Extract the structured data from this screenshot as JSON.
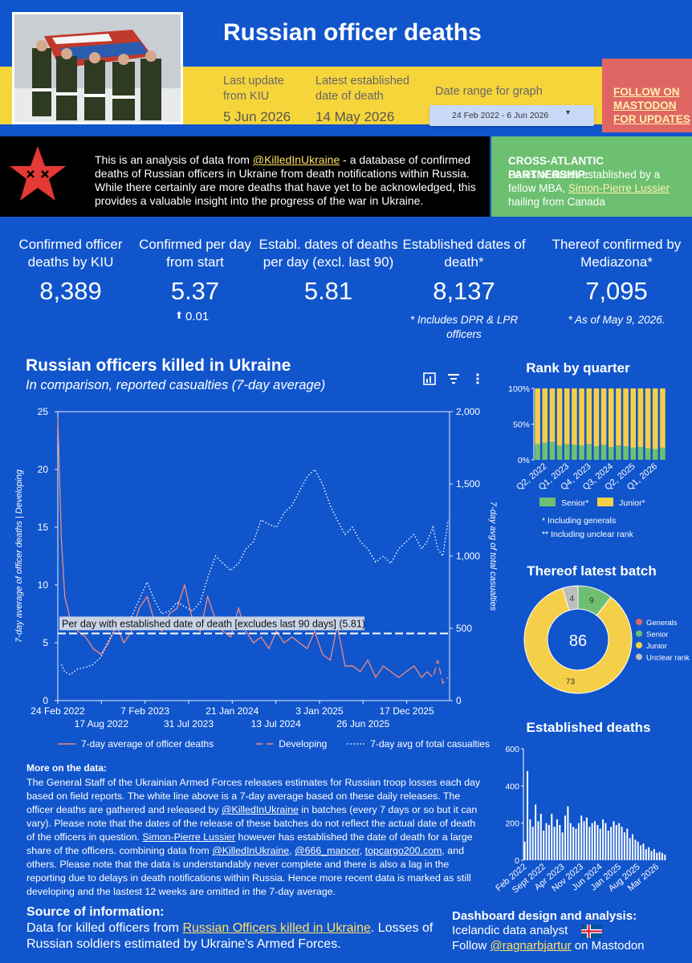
{
  "header": {
    "title": "Russian officer deaths",
    "last_update_label": "Last update from KIU",
    "last_update": "5 Jun 2026",
    "latest_death_label": "Latest established date of death",
    "latest_death": "14 May 2026",
    "date_range_label": "Date range for graph",
    "date_range": "24 Feb 2022 - 6 Jun 2026",
    "follow_button": "FOLLOW ON MASTODON FOR UPDATES"
  },
  "intro": {
    "segments": [
      "This is an analysis of data from ",
      {
        "link": "@KilledInUkraine"
      },
      " - a database of confirmed deaths of Russian officers in Ukraine from death notifications within Russia. While there certainly are more deaths that have yet to be acknowledged, this provides a valuable insight into the progress of the war in Ukraine."
    ]
  },
  "partnership": {
    "title": "CROSS-ATLANTIC PARTNERSHIP:",
    "segments": [
      "Dates of death established by a fellow MBA, ",
      {
        "link": "Simon-Pierre Lussier"
      },
      " hailing from Canada"
    ]
  },
  "kpis": [
    {
      "label": "Confirmed officer deaths by KIU",
      "value": "8,389"
    },
    {
      "label": "Confirmed per day from start",
      "value": "5.37",
      "change": "0.01"
    },
    {
      "label": "Establ. dates of deaths per day (excl. last 90)",
      "value": "5.81"
    },
    {
      "label": "Established dates of death*",
      "value": "8,137",
      "note": "* Includes DPR & LPR officers"
    },
    {
      "label": "Thereof confirmed by Mediazona*",
      "value": "7,095",
      "note": "* As of May 9, 2026."
    }
  ],
  "chart_data": [
    {
      "type": "line",
      "title": "Russian officers killed in Ukraine",
      "subtitle": "In comparison, reported casualties (7-day average)",
      "x": [
        "2022-02-24",
        "2022-03-10",
        "2022-03-24",
        "2022-04-15",
        "2022-05-15",
        "2022-06-15",
        "2022-07-15",
        "2022-08-15",
        "2022-09-15",
        "2022-10-15",
        "2022-11-15",
        "2022-12-15",
        "2023-01-15",
        "2023-02-15",
        "2023-03-15",
        "2023-04-15",
        "2023-05-15",
        "2023-06-15",
        "2023-07-15",
        "2023-08-15",
        "2023-09-15",
        "2023-10-15",
        "2023-11-15",
        "2023-12-15",
        "2024-01-15",
        "2024-02-15",
        "2024-03-15",
        "2024-04-15",
        "2024-05-15",
        "2024-06-15",
        "2024-07-15",
        "2024-08-15",
        "2024-09-15",
        "2024-10-15",
        "2024-11-15",
        "2024-12-15",
        "2025-01-15",
        "2025-02-15",
        "2025-03-15",
        "2025-04-15",
        "2025-05-15",
        "2025-06-15",
        "2025-07-15",
        "2025-08-15",
        "2025-09-15",
        "2025-10-15",
        "2025-11-15",
        "2025-12-15",
        "2026-01-15",
        "2026-02-15",
        "2026-03-08",
        "2026-04-01",
        "2026-04-20",
        "2026-05-10",
        "2026-06-01"
      ],
      "series": [
        {
          "name": "7-day average of officer deaths",
          "color": "#ef8a7e",
          "style": "solid",
          "axis": "y",
          "values": [
            24.5,
            14,
            9,
            7,
            6,
            5.5,
            4.5,
            4,
            5,
            6.5,
            5,
            6,
            8,
            9,
            7,
            6,
            7.5,
            8,
            10,
            7,
            6,
            9,
            7,
            6,
            5.5,
            8,
            6,
            5,
            5.5,
            4.5,
            6,
            5,
            5.5,
            5,
            4.5,
            6,
            4,
            3.5,
            6.5,
            3,
            3,
            2.5,
            3.5,
            2,
            3,
            2.5,
            2,
            2.5,
            3,
            2,
            2.5,
            null,
            null,
            null,
            null
          ]
        },
        {
          "name": "Developing",
          "color": "#ef8a7e",
          "style": "dashed",
          "axis": "y",
          "values": [
            null,
            null,
            null,
            null,
            null,
            null,
            null,
            null,
            null,
            null,
            null,
            null,
            null,
            null,
            null,
            null,
            null,
            null,
            null,
            null,
            null,
            null,
            null,
            null,
            null,
            null,
            null,
            null,
            null,
            null,
            null,
            null,
            null,
            null,
            null,
            null,
            null,
            null,
            null,
            null,
            null,
            null,
            null,
            null,
            null,
            null,
            null,
            null,
            null,
            null,
            2.5,
            2,
            3.5,
            1.5,
            2
          ]
        },
        {
          "name": "7-day avg of total casualties",
          "color": "#ffffff",
          "style": "dotted",
          "axis": "y2",
          "values": [
            null,
            250,
            200,
            180,
            220,
            230,
            250,
            300,
            420,
            500,
            560,
            580,
            700,
            820,
            700,
            600,
            620,
            680,
            650,
            620,
            680,
            850,
            1000,
            950,
            900,
            950,
            1050,
            1100,
            1250,
            1220,
            1200,
            1300,
            1350,
            1450,
            1550,
            1600,
            1500,
            1350,
            1250,
            1150,
            1200,
            1100,
            1050,
            960,
            1000,
            950,
            1050,
            1100,
            1150,
            1050,
            1100,
            1200,
            1050,
            1000,
            1250
          ]
        }
      ],
      "xlim": [
        "2022-02-24",
        "2026-06-06"
      ],
      "xticks": [
        {
          "value": "2022-02-24",
          "label": "24 Feb 2022"
        },
        {
          "value": "2022-08-17",
          "label": "17 Aug 2022"
        },
        {
          "value": "2023-02-07",
          "label": "7 Feb 2023"
        },
        {
          "value": "2023-07-31",
          "label": "31 Jul 2023"
        },
        {
          "value": "2024-01-21",
          "label": "21 Jan 2024"
        },
        {
          "value": "2024-07-13",
          "label": "13 Jul 2024"
        },
        {
          "value": "2025-01-03",
          "label": "3 Jan 2025"
        },
        {
          "value": "2025-06-26",
          "label": "26 Jun 2025"
        },
        {
          "value": "2025-12-17",
          "label": "17 Dec 2025"
        }
      ],
      "ylim": [
        0,
        25
      ],
      "yticks": [
        0,
        5,
        10,
        15,
        20,
        25
      ],
      "y2lim": [
        0,
        2000
      ],
      "y2ticks": [
        0,
        500,
        {
          "value": 1000,
          "label": "1,000"
        },
        {
          "value": 1500,
          "label": "1,500"
        },
        {
          "value": 2000,
          "label": "2,000"
        }
      ],
      "ylabel": "7-day average of officer deaths | Developing",
      "y2label": "7-day avg of total casualties",
      "reference": {
        "value": 5.81,
        "label": "Per day with established date of death [excludes last 90 days] (5.81)"
      },
      "grid": false
    },
    {
      "type": "bar",
      "stacked": true,
      "title": "Rank by quarter",
      "categories": [
        null,
        "Q2, 2022",
        null,
        null,
        "Q1, 2023",
        null,
        null,
        "Q4, 2023",
        null,
        null,
        "Q3, 2024",
        null,
        null,
        "Q2, 2025",
        null,
        null,
        "Q1, 2026",
        null
      ],
      "series": [
        {
          "name": "Senior*",
          "color": "#6fbf73",
          "values": [
            22,
            24,
            25,
            20,
            22,
            21,
            20,
            22,
            19,
            21,
            18,
            20,
            19,
            17,
            18,
            16,
            15,
            17
          ]
        },
        {
          "name": "Junior*",
          "color": "#f6cf4a",
          "values": [
            78,
            76,
            75,
            80,
            78,
            79,
            80,
            78,
            81,
            79,
            82,
            80,
            81,
            83,
            82,
            84,
            85,
            83
          ]
        }
      ],
      "ylim": [
        0,
        100
      ],
      "yticks": [
        {
          "value": 0,
          "label": "0%"
        },
        {
          "value": 50,
          "label": "50%"
        },
        {
          "value": 100,
          "label": "100%"
        }
      ],
      "notes": [
        "* Including generals",
        "** Including unclear rank"
      ]
    },
    {
      "type": "pie",
      "donut": true,
      "title": "Thereof latest batch",
      "labels": [
        "Generals",
        "Senior",
        "Junior",
        "Unclear rank"
      ],
      "values": [
        0,
        9,
        73,
        4
      ],
      "colors": [
        "#e06666",
        "#6fbf73",
        "#f6cf4a",
        "#bdbdbd"
      ],
      "total": 86
    },
    {
      "type": "bar",
      "title": "Established deaths",
      "categories": [
        "Feb 2022",
        null,
        null,
        null,
        null,
        null,
        null,
        "Sept 2022",
        null,
        null,
        null,
        null,
        null,
        null,
        "Apr 2023",
        null,
        null,
        null,
        null,
        null,
        null,
        "Nov 2023",
        null,
        null,
        null,
        null,
        null,
        null,
        "Jun 2024",
        null,
        null,
        null,
        null,
        null,
        null,
        "Jan 2025",
        null,
        null,
        null,
        null,
        null,
        null,
        "Aug 2025",
        null,
        null,
        null,
        null,
        null,
        null,
        "Mar 2026",
        null,
        null,
        null
      ],
      "values": [
        100,
        480,
        220,
        180,
        300,
        210,
        250,
        160,
        200,
        190,
        250,
        180,
        220,
        190,
        150,
        240,
        290,
        200,
        180,
        170,
        200,
        240,
        210,
        230,
        180,
        200,
        210,
        190,
        170,
        220,
        200,
        160,
        180,
        210,
        190,
        200,
        180,
        150,
        170,
        120,
        140,
        110,
        100,
        80,
        90,
        60,
        70,
        50,
        60,
        40,
        45,
        40,
        30
      ],
      "color": "#ffffff",
      "ylim": [
        0,
        600
      ],
      "yticks": [
        0,
        200,
        400,
        600
      ]
    }
  ],
  "more": {
    "title": "More on the data:",
    "segments": [
      "The General Staff of the Ukrainian Armed Forces releases estimates for Russian troop losses each day based on field reports. The white line above is a 7-day average based on these daily releases. The officer deaths are gathered and released by ",
      {
        "link": "@KilledInUkraine"
      },
      " in batches (every 7 days or so but it can vary). Please note that the dates of the release of these batches do not reflect the actual date of death of the officers in question. ",
      {
        "link": "Simon-Pierre Lussier"
      },
      " however has established the date of death for a large share of the officers. combining data from ",
      {
        "link": "@KilledInUkraine"
      },
      ", ",
      {
        "link": "@666_mancer"
      },
      ", ",
      {
        "link": "topcargo200.com"
      },
      ", and others. Please note that the data is understandably never complete and there is also a lag in the reporting due to delays in death notifications within Russia. Hence more recent data is marked as still developing and the lastest 12 weeks are omitted in the 7-day average."
    ]
  },
  "source": {
    "title": "Source of information:",
    "segments": [
      "Data for killed officers from ",
      {
        "link": "Russian Officers killed in Ukraine"
      },
      ". Losses of Russian soldiers estimated by Ukraine's Armed Forces."
    ]
  },
  "design": {
    "title": "Dashboard design and analysis:",
    "line1": "Icelandic data analyst",
    "segments": [
      "Follow ",
      {
        "link": "@ragnarbjartur"
      },
      " on Mastodon"
    ]
  }
}
